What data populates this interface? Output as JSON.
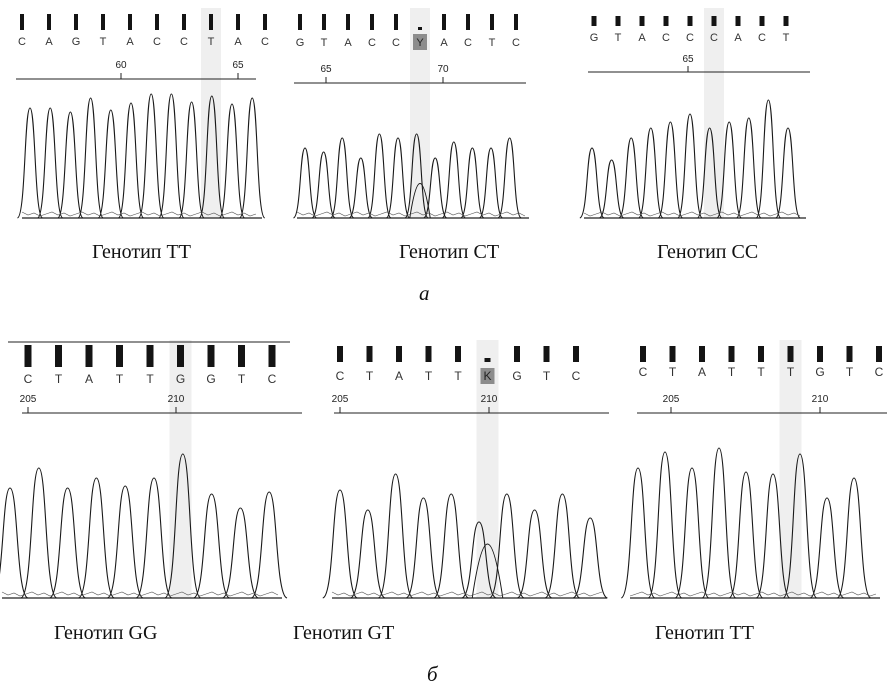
{
  "figure": {
    "panel_a": {
      "label": "а",
      "traces": [
        {
          "bases": [
            "C",
            "A",
            "G",
            "T",
            "A",
            "C",
            "C",
            "T",
            "A",
            "C"
          ],
          "positions": [
            "60",
            "65"
          ],
          "highlight_index": 7,
          "genotype_caption": "Генотип TT"
        },
        {
          "bases": [
            "G",
            "T",
            "A",
            "C",
            "C",
            "Y",
            "A",
            "C",
            "T",
            "C"
          ],
          "positions": [
            "65",
            "70"
          ],
          "highlight_index": 5,
          "genotype_caption": "Генотип CT"
        },
        {
          "bases": [
            "G",
            "T",
            "A",
            "C",
            "C",
            "C",
            "A",
            "C",
            "T"
          ],
          "positions": [
            "65"
          ],
          "highlight_index": 5,
          "genotype_caption": "Генотип CC"
        }
      ]
    },
    "panel_b": {
      "label": "б",
      "traces": [
        {
          "bases": [
            "C",
            "T",
            "A",
            "T",
            "T",
            "G",
            "G",
            "T",
            "C"
          ],
          "positions": [
            "205",
            "210"
          ],
          "highlight_index": 5,
          "genotype_caption": "Генотип GG"
        },
        {
          "bases": [
            "C",
            "T",
            "A",
            "T",
            "T",
            "K",
            "G",
            "T",
            "C"
          ],
          "positions": [
            "205",
            "210"
          ],
          "highlight_index": 5,
          "genotype_caption": "Генотип GT"
        },
        {
          "bases": [
            "C",
            "T",
            "A",
            "T",
            "T",
            "T",
            "G",
            "T",
            "C"
          ],
          "positions": [
            "205",
            "210"
          ],
          "highlight_index": 5,
          "genotype_caption": "Генотип TT"
        }
      ]
    },
    "colors": {
      "trace": "#1a1a1a",
      "highlight": "#efefef",
      "ambiguous_base_bg": "#8c8c8c",
      "quality_bar": "#141414"
    }
  }
}
